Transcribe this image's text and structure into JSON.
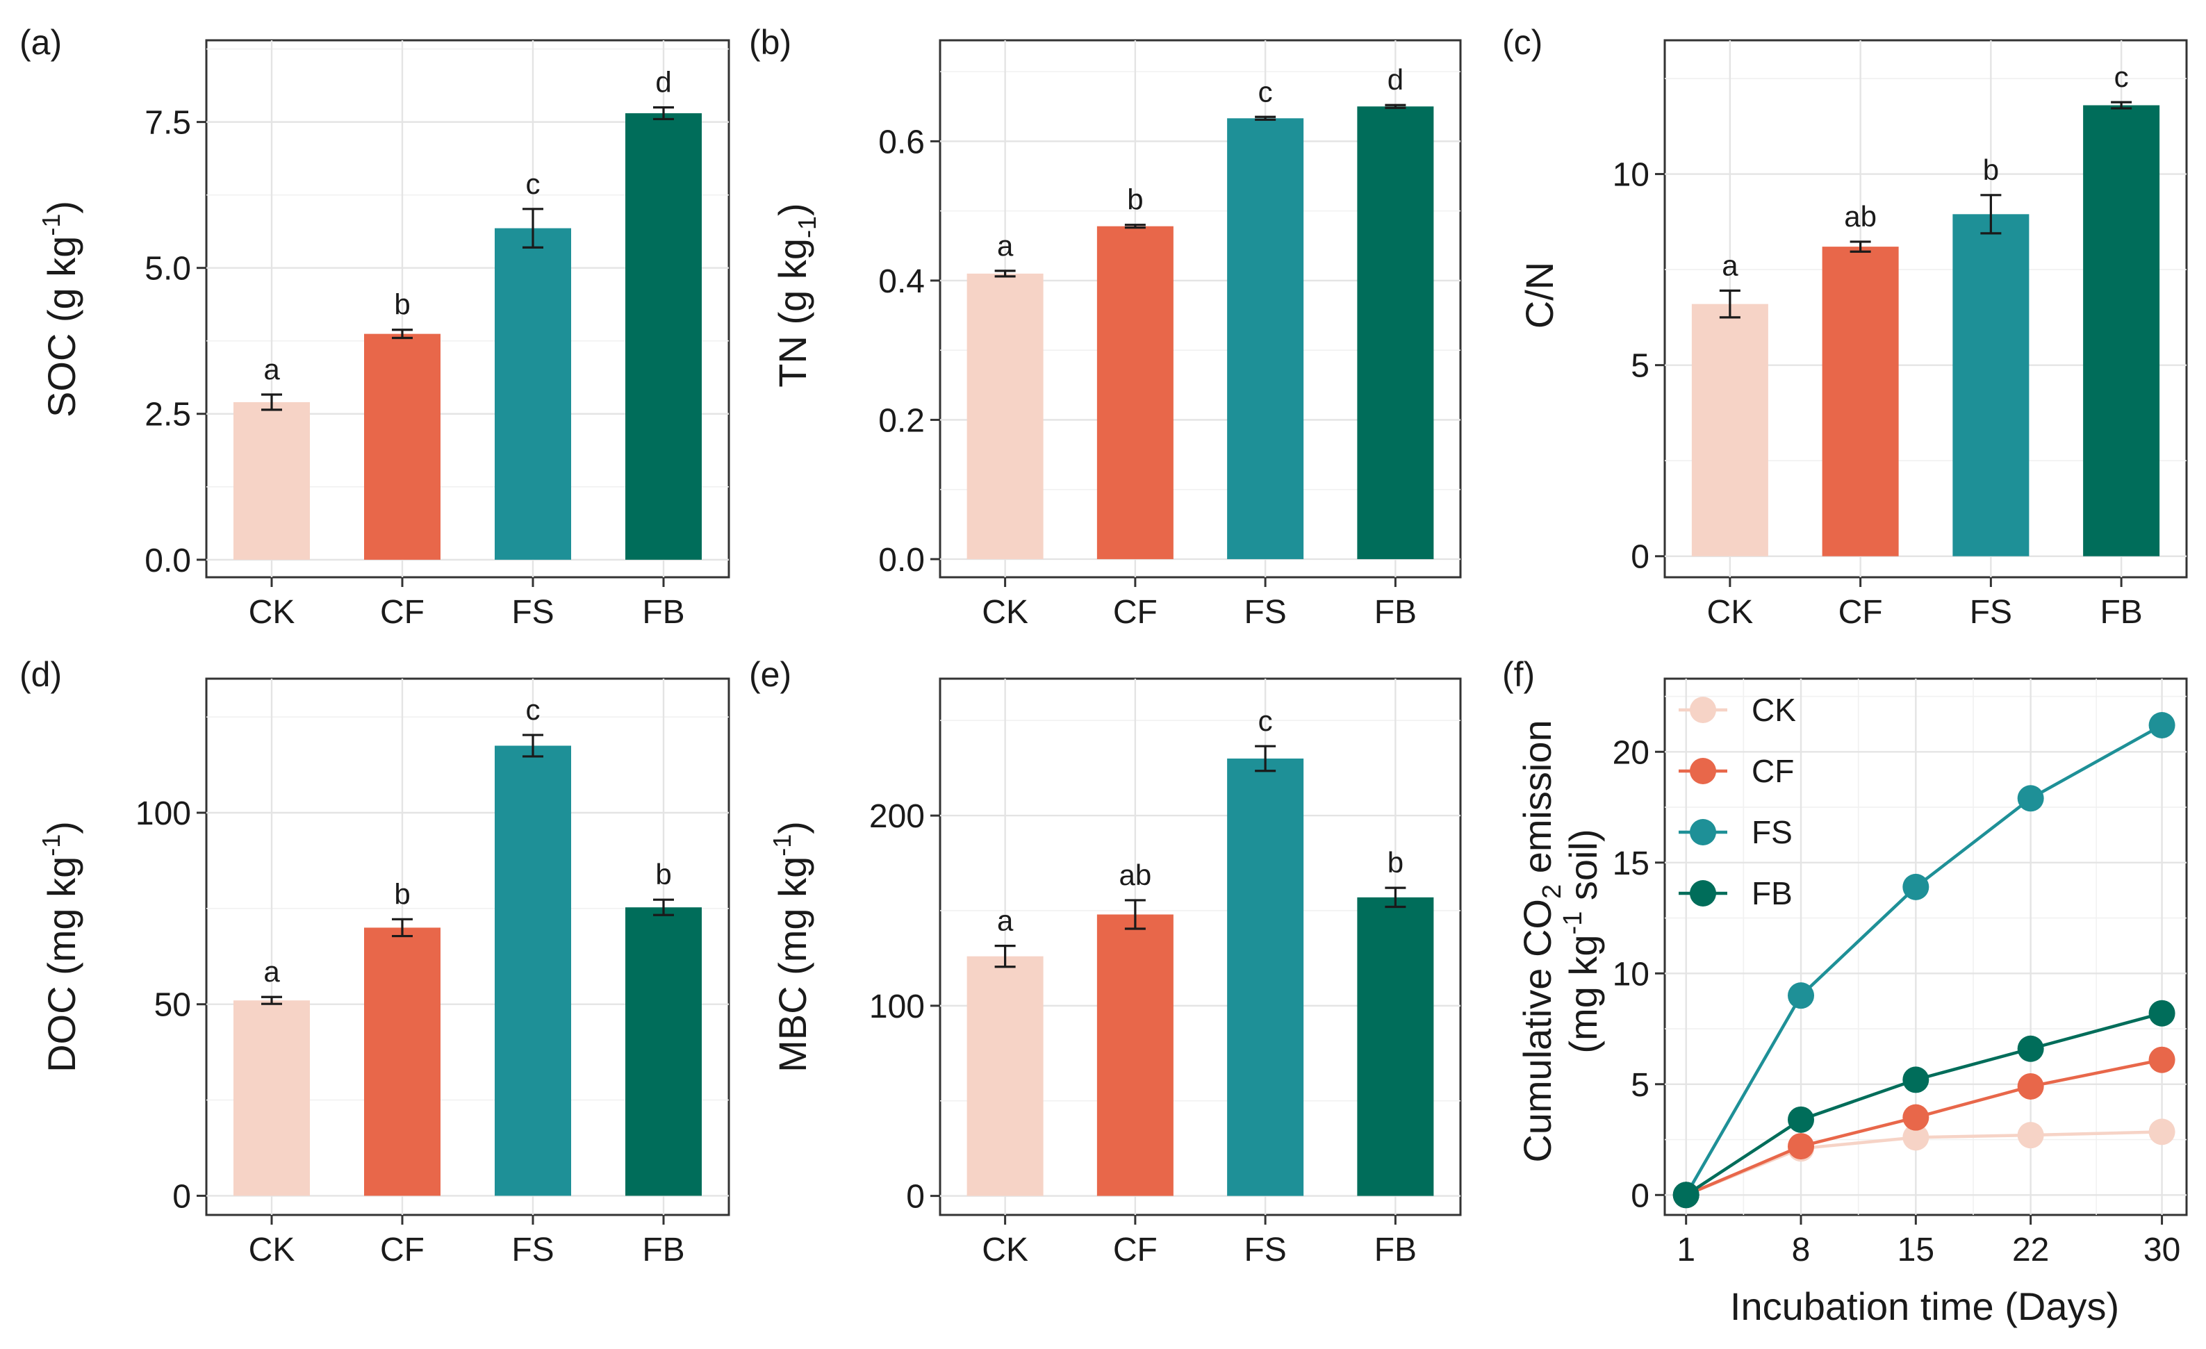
{
  "colors": {
    "CK": "#f6d3c6",
    "CF": "#e8674a",
    "FS": "#1e9097",
    "FB": "#006d5a"
  },
  "chart_data": [
    {
      "panel": "(a)",
      "type": "bar",
      "ylabel_main": "SOC (g kg",
      "ylabel_sup": "-1",
      "ylabel_end": ")",
      "categories": [
        "CK",
        "CF",
        "FS",
        "FB"
      ],
      "values": [
        2.7,
        3.87,
        5.68,
        7.65
      ],
      "errors": [
        0.13,
        0.07,
        0.33,
        0.1
      ],
      "letters": [
        "a",
        "b",
        "c",
        "d"
      ],
      "ylim": [
        -0.3,
        8.9
      ],
      "yticks": [
        0,
        2.5,
        5,
        7.5
      ],
      "ytick_labels": [
        "0.0",
        "2.5",
        "5.0",
        "7.5"
      ]
    },
    {
      "panel": "(b)",
      "type": "bar",
      "ylabel_main": "TN (g kg",
      "ylabel_sub": "-1",
      "ylabel_end": ")",
      "categories": [
        "CK",
        "CF",
        "FS",
        "FB"
      ],
      "values": [
        0.41,
        0.478,
        0.633,
        0.65
      ],
      "errors": [
        0.004,
        0.002,
        0.002,
        0.002
      ],
      "letters": [
        "a",
        "b",
        "c",
        "d"
      ],
      "ylim": [
        -0.026,
        0.745
      ],
      "yticks": [
        0,
        0.2,
        0.4,
        0.6
      ],
      "ytick_labels": [
        "0.0",
        "0.2",
        "0.4",
        "0.6"
      ]
    },
    {
      "panel": "(c)",
      "type": "bar",
      "ylabel_main": "C/N",
      "categories": [
        "CK",
        "CF",
        "FS",
        "FB"
      ],
      "values": [
        6.6,
        8.1,
        8.95,
        11.8
      ],
      "errors": [
        0.35,
        0.13,
        0.5,
        0.08
      ],
      "letters": [
        "a",
        "ab",
        "b",
        "c"
      ],
      "ylim": [
        -0.55,
        13.5
      ],
      "yticks": [
        0,
        5,
        10
      ],
      "ytick_labels": [
        "0",
        "5",
        "10"
      ]
    },
    {
      "panel": "(d)",
      "type": "bar",
      "ylabel_main": "DOC  (mg kg",
      "ylabel_sup": "-1",
      "ylabel_end": ")",
      "categories": [
        "CK",
        "CF",
        "FS",
        "FB"
      ],
      "values": [
        51,
        70,
        117.5,
        75.3
      ],
      "errors": [
        0.9,
        2.2,
        2.8,
        2.0
      ],
      "letters": [
        "a",
        "b",
        "c",
        "b"
      ],
      "ylim": [
        -5,
        135
      ],
      "yticks": [
        0,
        50,
        100
      ],
      "ytick_labels": [
        "0",
        "50",
        "100"
      ]
    },
    {
      "panel": "(e)",
      "type": "bar",
      "ylabel_main": "MBC  (mg  kg",
      "ylabel_sup": "-1",
      "ylabel_end": ")",
      "categories": [
        "CK",
        "CF",
        "FS",
        "FB"
      ],
      "values": [
        126,
        148,
        230,
        157
      ],
      "errors": [
        5.5,
        7.5,
        6.5,
        5.0
      ],
      "letters": [
        "a",
        "ab",
        "c",
        "b"
      ],
      "ylim": [
        -10,
        272
      ],
      "yticks": [
        0,
        100,
        200
      ],
      "ytick_labels": [
        "0",
        "100",
        "200"
      ]
    },
    {
      "panel": "(f)",
      "type": "line",
      "xlabel": "Incubation time (Days)",
      "ylabel_line1_a": "Cumulative CO",
      "ylabel_line1_sub": "2",
      "ylabel_line1_b": " emission",
      "ylabel_line2_a": "(mg kg",
      "ylabel_line2_sup": "-1",
      "ylabel_line2_b": " soil)",
      "x": [
        1,
        8,
        15,
        22,
        30
      ],
      "xtick_labels": [
        "1",
        "8",
        "15",
        "22",
        "30"
      ],
      "series": [
        {
          "name": "CK",
          "values": [
            0,
            2.1,
            2.6,
            2.7,
            2.85
          ]
        },
        {
          "name": "CF",
          "values": [
            0,
            2.2,
            3.5,
            4.9,
            6.1
          ]
        },
        {
          "name": "FS",
          "values": [
            0,
            9.0,
            13.9,
            17.9,
            21.2
          ]
        },
        {
          "name": "FB",
          "values": [
            0,
            3.4,
            5.2,
            6.6,
            8.2
          ]
        }
      ],
      "ylim": [
        -0.9,
        23.3
      ],
      "xlim": [
        -0.3,
        31.5
      ],
      "yticks": [
        0,
        5,
        10,
        15,
        20
      ],
      "ytick_labels": [
        "0",
        "5",
        "10",
        "15",
        "20"
      ],
      "legend_position": "top-left"
    }
  ]
}
